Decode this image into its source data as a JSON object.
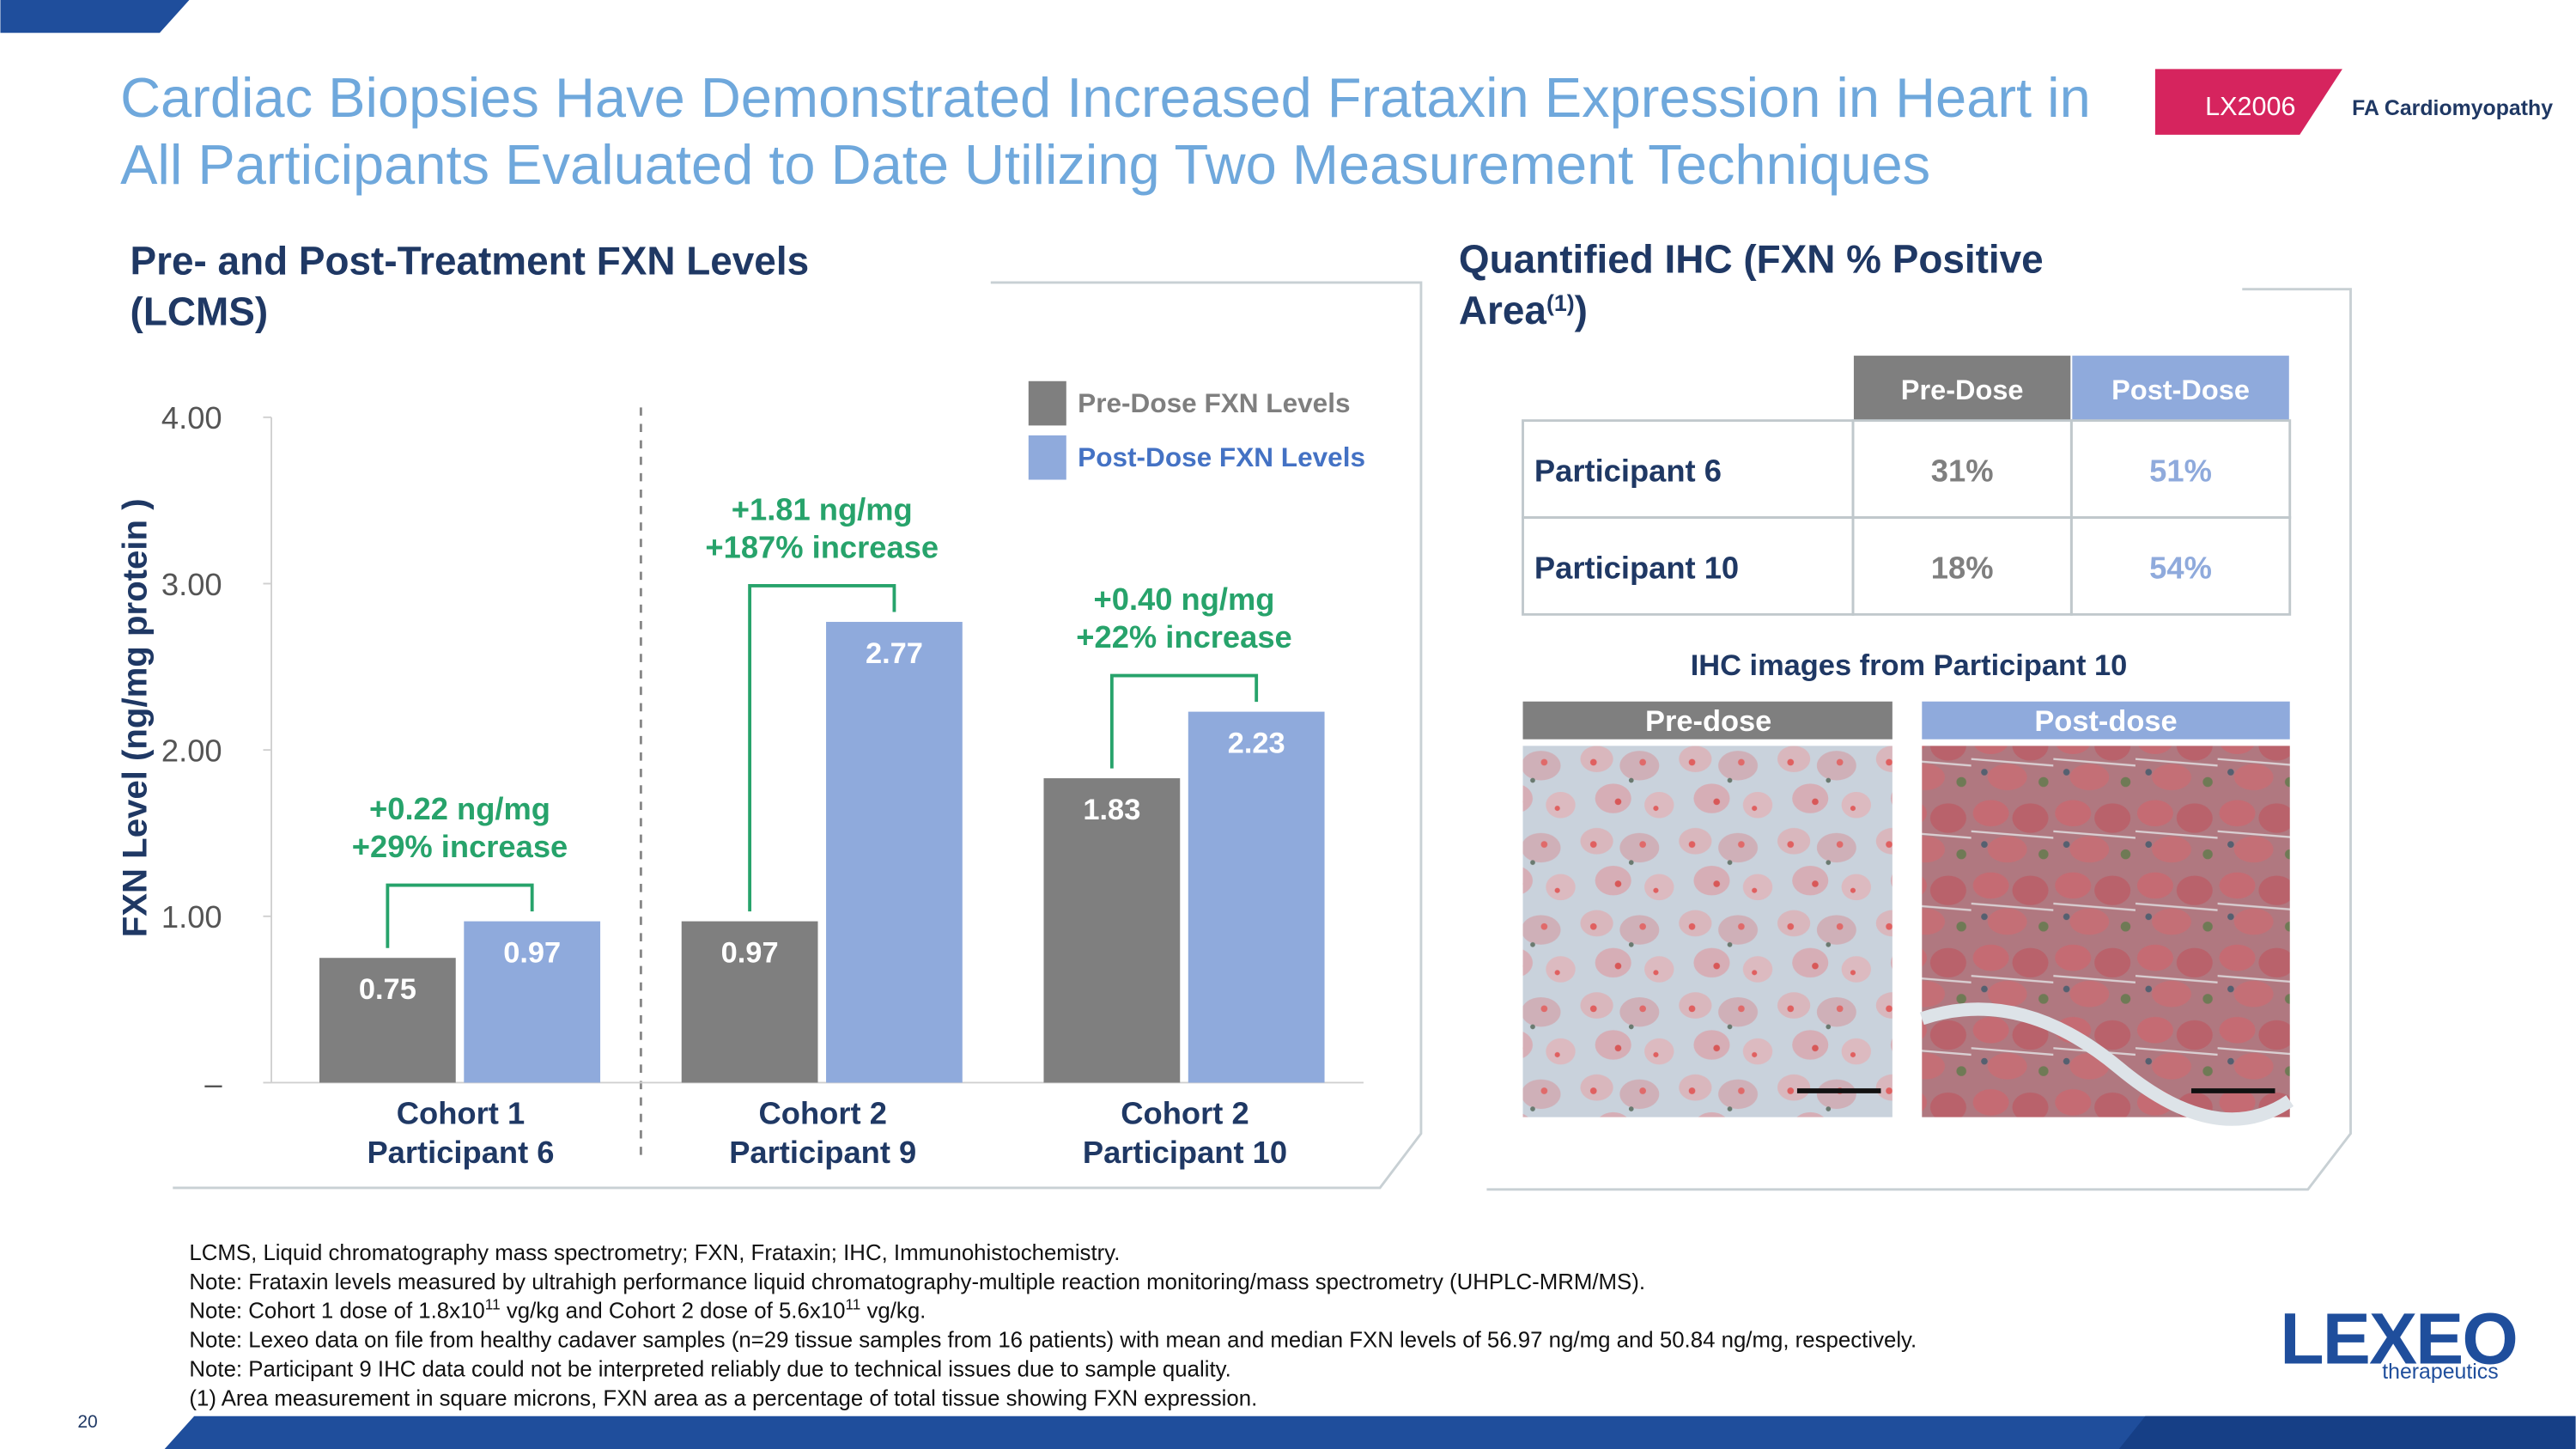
{
  "header": {
    "title": [
      "Cardiac Biopsies Have Demonstrated Increased Frataxin Expression in Heart in",
      "All Participants Evaluated to Date Utilizing Two Measurement Techniques"
    ],
    "badge": "LX2006",
    "tag": "FA Cardiomyopathy"
  },
  "chart_data": {
    "type": "bar",
    "title": [
      "Pre- and Post-Treatment FXN Levels",
      "(LCMS)"
    ],
    "ylabel": "FXN Level (ng/mg protein )",
    "categories": [
      [
        "Cohort 1",
        "Participant 6"
      ],
      [
        "Cohort 2",
        "Participant 9"
      ],
      [
        "Cohort 2",
        "Participant 10"
      ]
    ],
    "series": [
      {
        "name": "Pre-Dose FXN Levels",
        "color": "#7f7f7f",
        "values": [
          0.75,
          0.97,
          1.83
        ]
      },
      {
        "name": "Post-Dose FXN Levels",
        "color": "#8faadc",
        "values": [
          0.97,
          2.77,
          2.23
        ]
      }
    ],
    "annotations": [
      [
        "+0.22 ng/mg",
        "+29% increase"
      ],
      [
        "+1.81 ng/mg",
        "+187% increase"
      ],
      [
        "+0.40 ng/mg",
        "+22% increase"
      ]
    ],
    "ylim": [
      0,
      4
    ],
    "yticks": [
      {
        "value": 0,
        "label": "–"
      },
      {
        "value": 1,
        "label": "1.00"
      },
      {
        "value": 2,
        "label": "2.00"
      },
      {
        "value": 3,
        "label": "3.00"
      },
      {
        "value": 4,
        "label": "4.00"
      }
    ],
    "legend": "top-right"
  },
  "ihc": {
    "title": [
      "Quantified IHC (FXN % Positive",
      [
        "Area",
        "(1)",
        ")"
      ]
    ],
    "columns": [
      "Pre-Dose",
      "Post-Dose"
    ],
    "rows": [
      [
        "Participant 6",
        "31%",
        "51%"
      ],
      [
        "Participant 10",
        "18%",
        "54%"
      ]
    ],
    "images_title": "IHC images from Participant 10",
    "images": [
      "Pre-dose",
      "Post-dose"
    ]
  },
  "footnotes": [
    [
      "LCMS, Liquid chromatography mass spectrometry; FXN, Frataxin; IHC, Immunohistochemistry."
    ],
    [
      "Note: Frataxin levels measured by ultrahigh performance liquid chromatography-multiple reaction monitoring/mass spectrometry (UHPLC-MRM/MS)."
    ],
    [
      "Note: Cohort 1 dose of 1.8x10",
      "11",
      " vg/kg and Cohort 2 dose of 5.6x10",
      "11",
      " vg/kg."
    ],
    [
      "Note: Lexeo data on file from healthy cadaver samples (n=29 tissue samples from 16 patients) with mean and median FXN levels of 56.97 ng/mg and 50.84 ng/mg, respectively."
    ],
    [
      "Note: Participant 9 IHC data could not be interpreted reliably due to technical issues due to sample quality."
    ],
    [
      "(1)   Area measurement in square microns, FXN area as a percentage of total tissue showing FXN expression."
    ]
  ],
  "page_number": "20",
  "logo": {
    "name": "LEXEO",
    "tagline": "therapeutics"
  }
}
